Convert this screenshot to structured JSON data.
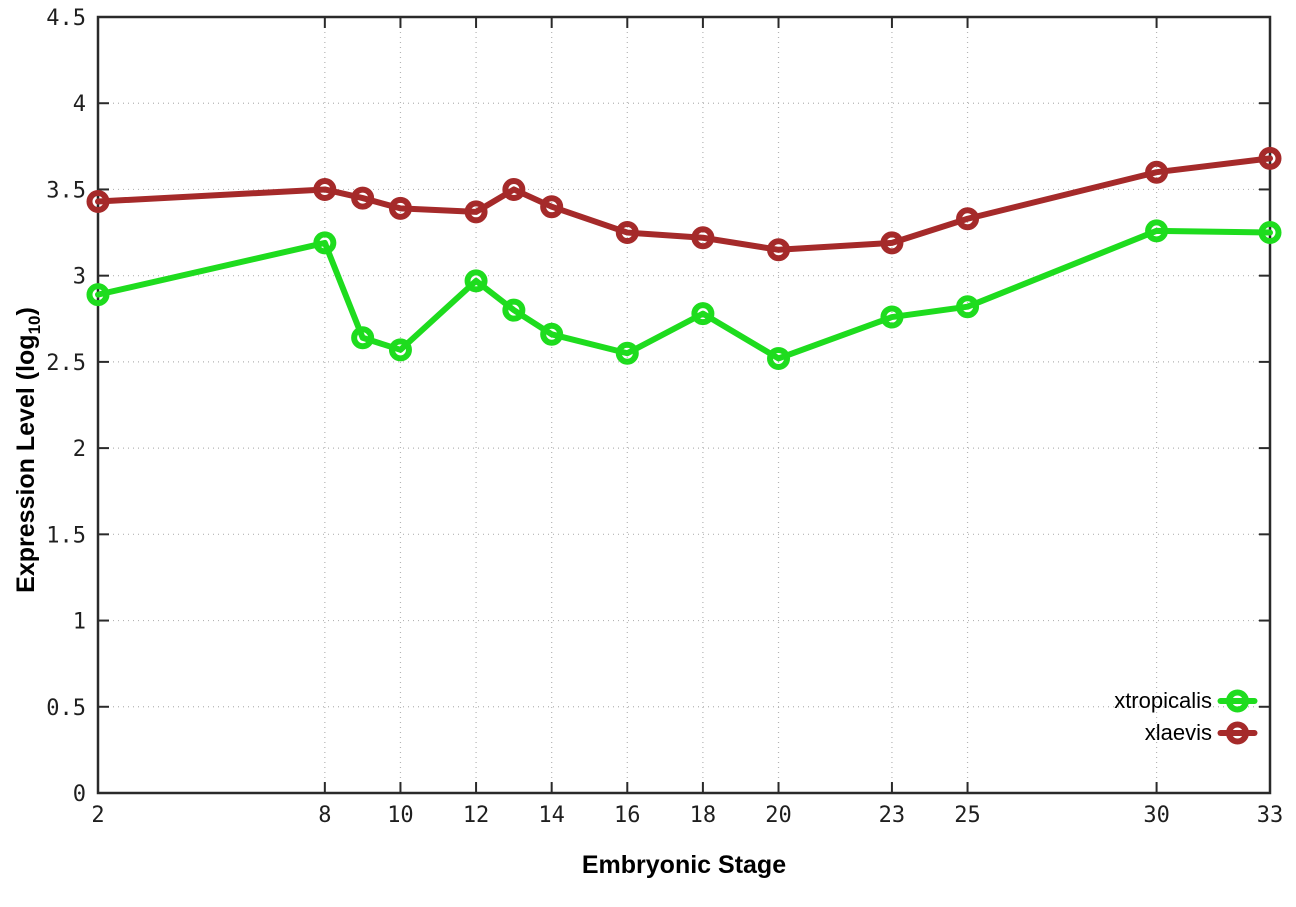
{
  "chart_data": {
    "type": "line",
    "title": "",
    "xlabel": "Embryonic Stage",
    "ylabel_prefix": "Expression Level (log",
    "ylabel_sub": "10",
    "ylabel_suffix": ")",
    "x": [
      2,
      8,
      9,
      10,
      12,
      13,
      14,
      16,
      18,
      20,
      23,
      25,
      30,
      33
    ],
    "series": [
      {
        "name": "xtropicalis",
        "color": "#1edc1e",
        "values": [
          2.89,
          3.19,
          2.64,
          2.57,
          2.97,
          2.8,
          2.66,
          2.55,
          2.78,
          2.52,
          2.76,
          2.82,
          3.26,
          3.25
        ]
      },
      {
        "name": "xlaevis",
        "color": "#a52a2a",
        "values": [
          3.43,
          3.5,
          3.45,
          3.39,
          3.37,
          3.5,
          3.4,
          3.25,
          3.22,
          3.15,
          3.19,
          3.33,
          3.6,
          3.68
        ]
      }
    ],
    "xlim": [
      2,
      33
    ],
    "ylim": [
      0,
      4.5
    ],
    "xticks": [
      2,
      8,
      10,
      12,
      14,
      16,
      18,
      20,
      23,
      25,
      30,
      33
    ],
    "xtick_labels": [
      "2",
      "8",
      "10",
      "12",
      "14",
      "16",
      "18",
      "20",
      "23",
      "25",
      "30",
      "33"
    ],
    "yticks": [
      0,
      0.5,
      1,
      1.5,
      2,
      2.5,
      3,
      3.5,
      4,
      4.5
    ],
    "ytick_labels": [
      "0",
      "0.5",
      "1",
      "1.5",
      "2",
      "2.5",
      "3",
      "3.5",
      "4",
      "4.5"
    ],
    "grid": true,
    "legend_position": "bottom-right",
    "marker": "open-circle",
    "colors": {
      "background": "#ffffff",
      "border": "#2a2a2a",
      "grid": "#b4b4b4",
      "tick_text": "#1f1f1f"
    }
  }
}
